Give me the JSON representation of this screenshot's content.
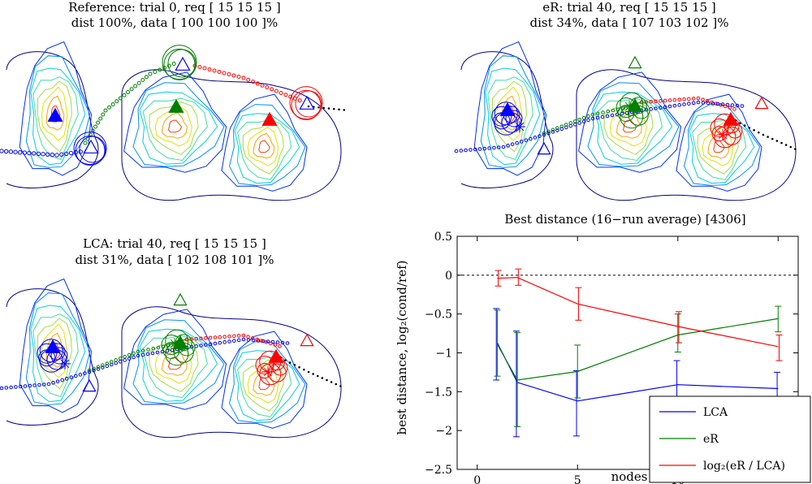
{
  "panels": {
    "reference": {
      "title_line1": "Reference: trial 0, req [ 15 15 15 ]",
      "title_line2": "dist 100%, data [ 100 100 100 ]%"
    },
    "er": {
      "title_line1": "eR: trial 40, req [ 15 15 15 ]",
      "title_line2": "dist 34%, data [ 107 103 102 ]%"
    },
    "lca": {
      "title_line1": "LCA: trial 40, req [ 15 15 15 ]",
      "title_line2": "dist 31%, data [ 102 108 101 ]%"
    }
  },
  "colors": {
    "blue": "#0000ff",
    "green": "#007f00",
    "red": "#ff0000",
    "contour_outer": "#00008f"
  },
  "chart_data": {
    "type": "line",
    "title": "Best distance (16−run average) [4306]",
    "xlabel": "nodes",
    "ylabel": "best distance, log₂(cond/ref)",
    "xlim": [
      -1,
      16
    ],
    "ylim": [
      -2.5,
      0.5
    ],
    "xticks": [
      0,
      5,
      10,
      15
    ],
    "xtick_labels": [
      "0",
      "5",
      "10",
      ""
    ],
    "yticks": [
      0.5,
      0,
      -0.5,
      -1,
      -1.5,
      -2,
      -2.5
    ],
    "ytick_labels": [
      "0.5",
      "0",
      "−0.5",
      "−1",
      "−1.5",
      "−2",
      "−2.5"
    ],
    "reference_line": 0,
    "x": [
      1,
      2,
      5,
      10,
      15
    ],
    "series": [
      {
        "name": "LCA",
        "color": "#0000ff",
        "values": [
          -0.87,
          -1.38,
          -1.62,
          -1.41,
          -1.46
        ],
        "err_low": [
          -1.35,
          -2.08,
          -2.07,
          -1.72,
          -1.68
        ],
        "err_high": [
          -0.43,
          -0.72,
          -1.23,
          -1.1,
          -1.25
        ]
      },
      {
        "name": "eR",
        "color": "#007f00",
        "values": [
          -0.89,
          -1.35,
          -1.24,
          -0.77,
          -0.56
        ],
        "err_low": [
          -1.3,
          -1.95,
          -1.58,
          -0.99,
          -0.73
        ],
        "err_high": [
          -0.45,
          -0.74,
          -0.9,
          -0.5,
          -0.4
        ]
      },
      {
        "name": "log₂(eR / LCA)",
        "color": "#ff0000",
        "values": [
          -0.04,
          -0.03,
          -0.37,
          -0.66,
          -0.92
        ],
        "err_low": [
          -0.14,
          -0.13,
          -0.58,
          -0.87,
          -1.1
        ],
        "err_high": [
          0.06,
          0.08,
          -0.16,
          -0.47,
          -0.77
        ]
      }
    ],
    "legend": {
      "position": "bottom-right",
      "entries": [
        "LCA",
        "eR",
        "log₂(eR / LCA)"
      ]
    }
  }
}
